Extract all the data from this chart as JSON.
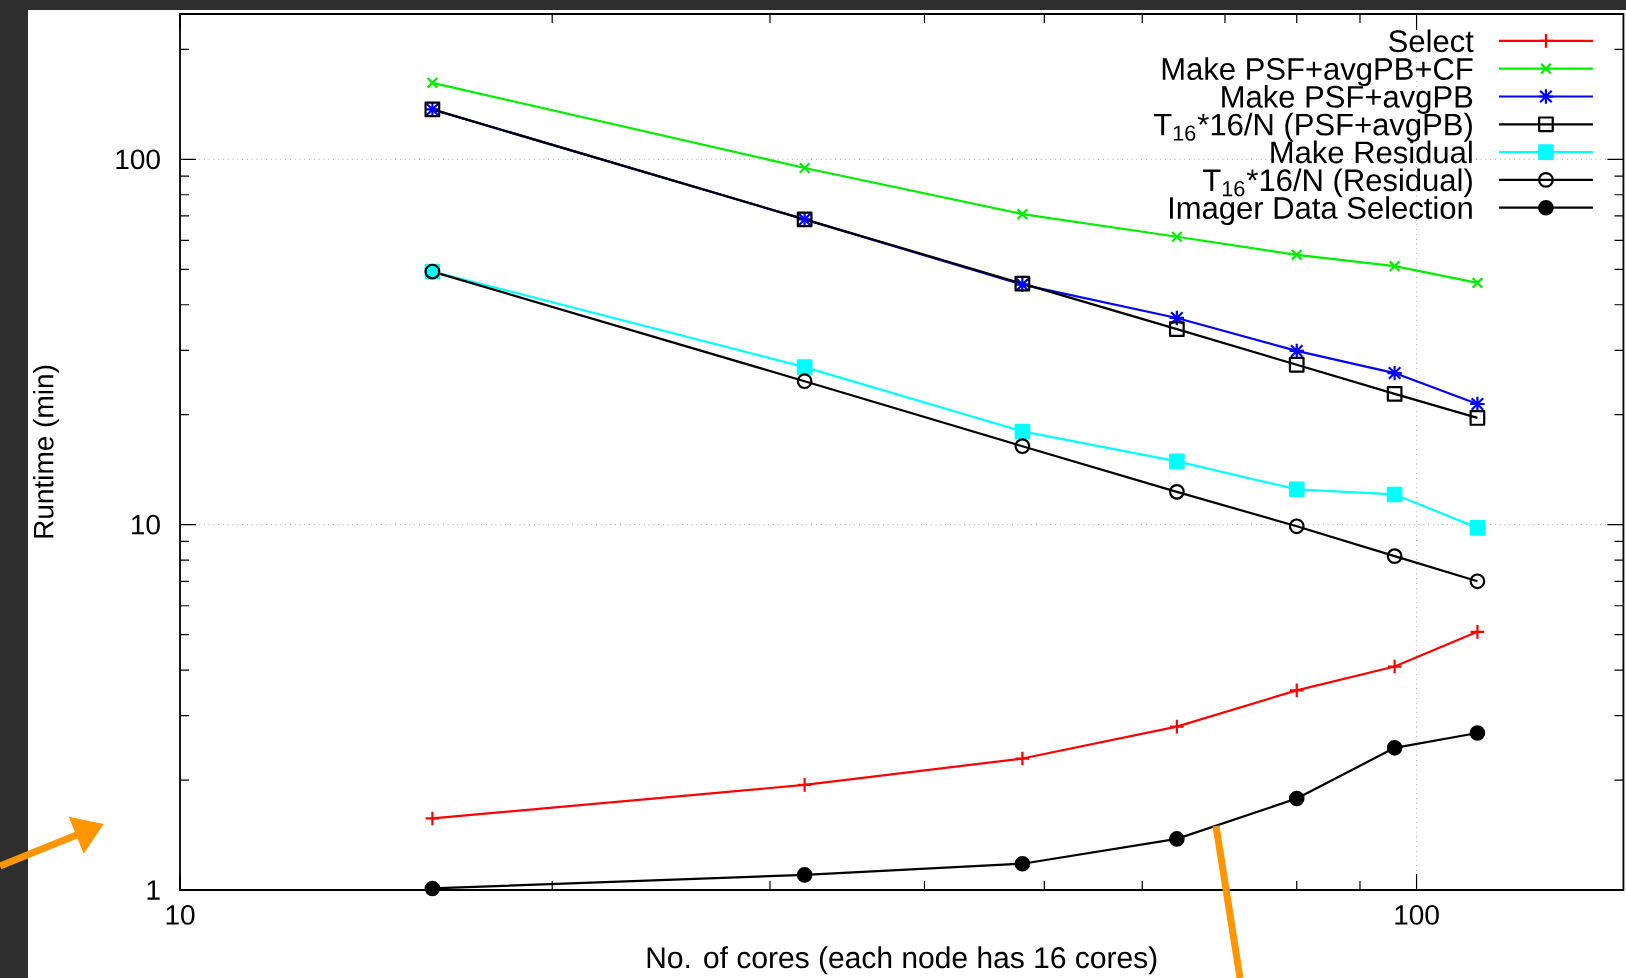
{
  "chart_data": {
    "type": "line",
    "xlabel": "No. of cores (each node has 16 cores)",
    "ylabel": "Runtime (min)",
    "x": [
      16,
      32,
      48,
      64,
      80,
      96,
      112
    ],
    "log": "xy",
    "xlim": [
      10,
      147
    ],
    "ylim": [
      1,
      250
    ],
    "xticks": [
      10,
      {
        "value": 20,
        "label": null
      },
      {
        "value": 30,
        "label": null
      },
      {
        "value": 40,
        "label": null
      },
      {
        "value": 50,
        "label": null
      },
      {
        "value": 60,
        "label": null
      },
      {
        "value": 70,
        "label": null
      },
      {
        "value": 80,
        "label": null
      },
      {
        "value": 90,
        "label": null
      },
      100
    ],
    "yticks": [
      1,
      {
        "value": 2,
        "label": null
      },
      {
        "value": 3,
        "label": null
      },
      {
        "value": 4,
        "label": null
      },
      {
        "value": 5,
        "label": null
      },
      {
        "value": 6,
        "label": null
      },
      {
        "value": 7,
        "label": null
      },
      {
        "value": 8,
        "label": null
      },
      {
        "value": 9,
        "label": null
      },
      10,
      {
        "value": 20,
        "label": null
      },
      {
        "value": 30,
        "label": null
      },
      {
        "value": 40,
        "label": null
      },
      {
        "value": 50,
        "label": null
      },
      {
        "value": 60,
        "label": null
      },
      {
        "value": 70,
        "label": null
      },
      {
        "value": 80,
        "label": null
      },
      {
        "value": 90,
        "label": null
      },
      100,
      {
        "value": 200,
        "label": null
      }
    ],
    "grid": true,
    "legend": "top right",
    "series": [
      {
        "name": "Select",
        "color": "#ff0000",
        "marker": "plus",
        "values": [
          1.57,
          1.94,
          2.29,
          2.8,
          3.52,
          4.09,
          5.09
        ]
      },
      {
        "name": "Make PSF+avgPB+CF",
        "color": "#00ee00",
        "marker": "x",
        "values": [
          162,
          94.7,
          70.8,
          61.4,
          54.8,
          51.0,
          45.9
        ]
      },
      {
        "name": "Make PSF+avgPB",
        "color": "#0000ff",
        "marker": "cross",
        "values": [
          137,
          68.5,
          45.4,
          36.8,
          29.9,
          26.0,
          21.4
        ]
      },
      {
        "name": "T$_{16}$*16/N (PSF+avgPB)",
        "color": "#000000",
        "marker": "square-open",
        "values": [
          137,
          68.5,
          45.7,
          34.3,
          27.4,
          22.8,
          19.6
        ]
      },
      {
        "name": "Make Residual",
        "color": "#00ffff",
        "marker": "square",
        "values": [
          49.3,
          27.0,
          18.0,
          14.9,
          12.5,
          12.1,
          9.8
        ]
      },
      {
        "name": "T$_{16}$*16/N (Residual)",
        "color": "#000000",
        "marker": "circle-open",
        "values": [
          49.3,
          24.7,
          16.4,
          12.3,
          9.9,
          8.2,
          7.0
        ]
      },
      {
        "name": "Imager Data Selection",
        "color": "#000000",
        "marker": "circle",
        "values": [
          1.01,
          1.1,
          1.18,
          1.38,
          1.78,
          2.45,
          2.69
        ]
      }
    ]
  }
}
